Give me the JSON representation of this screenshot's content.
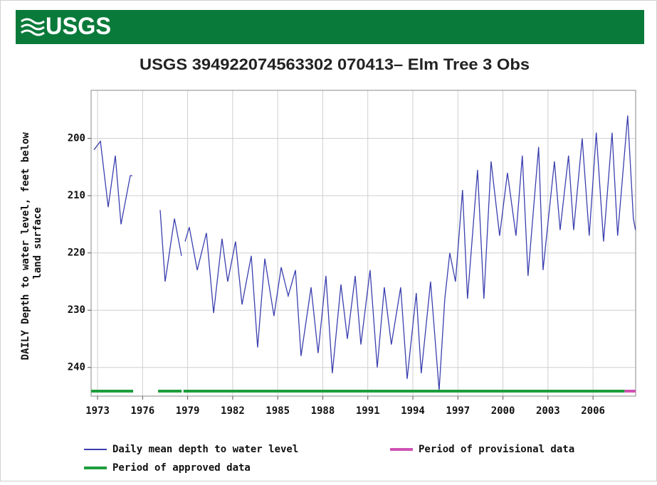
{
  "header": {
    "logo": "USGS"
  },
  "chart_data": {
    "type": "line",
    "title": "USGS 394922074563302 070413– Elm Tree 3 Obs",
    "y_label": "DAILY Depth to water level, feet below land surface",
    "y_inverted": true,
    "grid": true,
    "xlim": [
      1972.57,
      2008.84
    ],
    "xticks": [
      1973,
      1976,
      1979,
      1982,
      1985,
      1988,
      1991,
      1994,
      1997,
      2000,
      2003,
      2006
    ],
    "ylim": [
      191.6,
      245
    ],
    "yticks": [
      200,
      210,
      220,
      230,
      240
    ],
    "series": [
      {
        "name": "Daily mean depth to water level",
        "color": "#3a3fae",
        "x": [
          1972.76,
          1973.19,
          1973.71,
          1974.18,
          1974.56,
          1975.18,
          1975.32,
          1976.2,
          1977.17,
          1977.5,
          1978.12,
          1978.59,
          1978.7,
          1978.83,
          1979.11,
          1979.64,
          1980.25,
          1980.73,
          1981.29,
          1981.67,
          1982.19,
          1982.62,
          1983.24,
          1983.66,
          1984.14,
          1984.75,
          1985.23,
          1985.7,
          1986.18,
          1986.55,
          1987.22,
          1987.69,
          1988.21,
          1988.64,
          1989.21,
          1989.64,
          1990.16,
          1990.54,
          1991.15,
          1991.63,
          1992.1,
          1992.57,
          1993.19,
          1993.62,
          1994.23,
          1994.56,
          1995.18,
          1995.75,
          1996.13,
          1996.46,
          1996.84,
          1997.31,
          1997.64,
          1998.31,
          1998.73,
          1999.21,
          1999.78,
          2000.3,
          2000.87,
          2001.29,
          2001.67,
          2002.38,
          2002.67,
          2003.43,
          2003.81,
          2004.37,
          2004.71,
          2005.28,
          2005.75,
          2006.22,
          2006.7,
          2007.27,
          2007.64,
          2008.31,
          2008.69,
          2008.83
        ],
        "values": [
          202,
          200.5,
          212,
          203,
          215,
          206.5,
          206.5,
          null,
          212.5,
          225,
          214,
          220.5,
          null,
          218,
          215.5,
          223,
          216.5,
          230.5,
          217.5,
          225,
          218,
          229,
          220.5,
          236.5,
          221,
          231,
          222.5,
          227.5,
          223,
          238,
          226,
          237.5,
          224,
          241,
          225.5,
          235,
          224,
          236,
          223,
          240,
          226,
          236,
          226,
          242,
          227,
          241,
          225,
          244,
          228,
          220,
          225,
          209,
          228,
          205.5,
          228,
          204,
          217,
          206,
          217,
          203,
          224,
          201.5,
          223,
          204,
          216,
          203,
          216,
          200,
          217,
          199,
          218,
          199,
          217,
          196,
          214,
          216
        ]
      },
      {
        "name": "Period of provisional data",
        "color": "#d052b4",
        "periods": [
          [
            2008.1,
            2008.84
          ]
        ]
      },
      {
        "name": "Period of approved data",
        "color": "#1e9e3c",
        "periods": [
          [
            1972.57,
            1975.37
          ],
          [
            1977.03,
            1978.6
          ],
          [
            1978.72,
            2008.1
          ]
        ]
      }
    ]
  }
}
